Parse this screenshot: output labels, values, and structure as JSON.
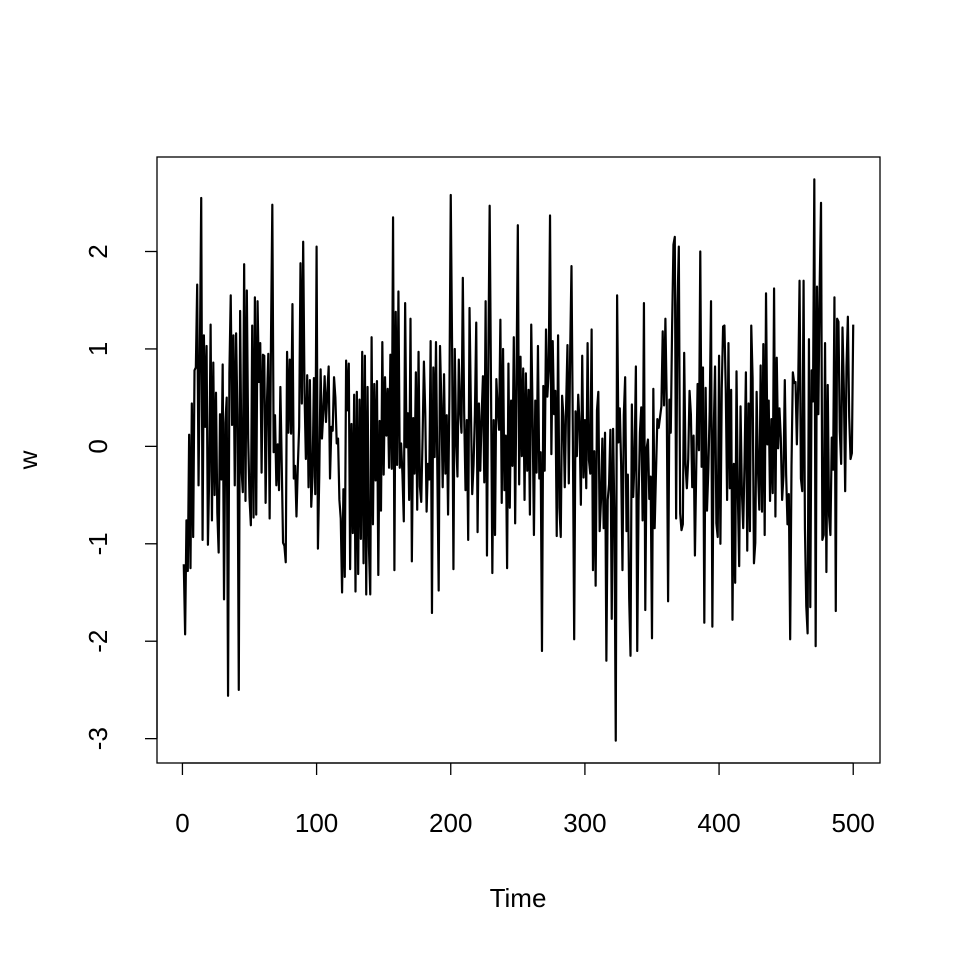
{
  "chart_data": {
    "type": "line",
    "xlabel": "Time",
    "ylabel": "w",
    "color": "#000000",
    "xlim": [
      -18.96,
      519.96
    ],
    "ylim": [
      -3.25,
      2.97
    ],
    "xticks": [
      0,
      100,
      200,
      300,
      400,
      500
    ],
    "yticks": [
      -3,
      -2,
      -1,
      0,
      1,
      2
    ],
    "x": [
      1,
      2,
      3,
      4,
      5,
      6,
      7,
      8,
      9,
      10,
      11,
      12,
      13,
      14,
      15,
      16,
      17,
      18,
      19,
      20,
      21,
      22,
      23,
      24,
      25,
      26,
      27,
      28,
      29,
      30,
      31,
      32,
      33,
      34,
      35,
      36,
      37,
      38,
      39,
      40,
      41,
      42,
      43,
      44,
      45,
      46,
      47,
      48,
      49,
      50,
      51,
      52,
      53,
      54,
      55,
      56,
      57,
      58,
      59,
      60,
      61,
      62,
      63,
      64,
      65,
      66,
      67,
      68,
      69,
      70,
      71,
      72,
      73,
      74,
      75,
      76,
      77,
      78,
      79,
      80,
      81,
      82,
      83,
      84,
      85,
      86,
      87,
      88,
      89,
      90,
      91,
      92,
      93,
      94,
      95,
      96,
      97,
      98,
      99,
      100,
      101,
      102,
      103,
      104,
      105,
      106,
      107,
      108,
      109,
      110,
      111,
      112,
      113,
      114,
      115,
      116,
      117,
      118,
      119,
      120,
      121,
      122,
      123,
      124,
      125,
      126,
      127,
      128,
      129,
      130,
      131,
      132,
      133,
      134,
      135,
      136,
      137,
      138,
      139,
      140,
      141,
      142,
      143,
      144,
      145,
      146,
      147,
      148,
      149,
      150,
      151,
      152,
      153,
      154,
      155,
      156,
      157,
      158,
      159,
      160,
      161,
      162,
      163,
      164,
      165,
      166,
      167,
      168,
      169,
      170,
      171,
      172,
      173,
      174,
      175,
      176,
      177,
      178,
      179,
      180,
      181,
      182,
      183,
      184,
      185,
      186,
      187,
      188,
      189,
      190,
      191,
      192,
      193,
      194,
      195,
      196,
      197,
      198,
      199,
      200,
      201,
      202,
      203,
      204,
      205,
      206,
      207,
      208,
      209,
      210,
      211,
      212,
      213,
      214,
      215,
      216,
      217,
      218,
      219,
      220,
      221,
      222,
      223,
      224,
      225,
      226,
      227,
      228,
      229,
      230,
      231,
      232,
      233,
      234,
      235,
      236,
      237,
      238,
      239,
      240,
      241,
      242,
      243,
      244,
      245,
      246,
      247,
      248,
      249,
      250,
      251,
      252,
      253,
      254,
      255,
      256,
      257,
      258,
      259,
      260,
      261,
      262,
      263,
      264,
      265,
      266,
      267,
      268,
      269,
      270,
      271,
      272,
      273,
      274,
      275,
      276,
      277,
      278,
      279,
      280,
      281,
      282,
      283,
      284,
      285,
      286,
      287,
      288,
      289,
      290,
      291,
      292,
      293,
      294,
      295,
      296,
      297,
      298,
      299,
      300,
      301,
      302,
      303,
      304,
      305,
      306,
      307,
      308,
      309,
      310,
      311,
      312,
      313,
      314,
      315,
      316,
      317,
      318,
      319,
      320,
      321,
      322,
      323,
      324,
      325,
      326,
      327,
      328,
      329,
      330,
      331,
      332,
      333,
      334,
      335,
      336,
      337,
      338,
      339,
      340,
      341,
      342,
      343,
      344,
      345,
      346,
      347,
      348,
      349,
      350,
      351,
      352,
      353,
      354,
      355,
      356,
      357,
      358,
      359,
      360,
      361,
      362,
      363,
      364,
      365,
      366,
      367,
      368,
      369,
      370,
      371,
      372,
      373,
      374,
      375,
      376,
      377,
      378,
      379,
      380,
      381,
      382,
      383,
      384,
      385,
      386,
      387,
      388,
      389,
      390,
      391,
      392,
      393,
      394,
      395,
      396,
      397,
      398,
      399,
      400,
      401,
      402,
      403,
      404,
      405,
      406,
      407,
      408,
      409,
      410,
      411,
      412,
      413,
      414,
      415,
      416,
      417,
      418,
      419,
      420,
      421,
      422,
      423,
      424,
      425,
      426,
      427,
      428,
      429,
      430,
      431,
      432,
      433,
      434,
      435,
      436,
      437,
      438,
      439,
      440,
      441,
      442,
      443,
      444,
      445,
      446,
      447,
      448,
      449,
      450,
      451,
      452,
      453,
      454,
      455,
      456,
      457,
      458,
      459,
      460,
      461,
      462,
      463,
      464,
      465,
      466,
      467,
      468,
      469,
      470,
      471,
      472,
      473,
      474,
      475,
      476,
      477,
      478,
      479,
      480,
      481,
      482,
      483,
      484,
      485,
      486,
      487,
      488,
      489,
      490,
      491,
      492,
      493,
      494,
      495,
      496,
      497,
      498,
      499,
      500
    ],
    "values": [
      -1.21,
      -1.93,
      -0.76,
      -1.28,
      0.12,
      -1.25,
      0.44,
      -0.93,
      0.78,
      0.81,
      1.66,
      -0.4,
      0.95,
      2.55,
      -0.96,
      1.14,
      0.2,
      1.03,
      -1.01,
      -0.25,
      1.25,
      -0.76,
      0.86,
      -0.5,
      0.55,
      -0.68,
      -1.09,
      0.33,
      -0.34,
      0.84,
      -1.57,
      0.24,
      0.5,
      -2.56,
      0.75,
      1.55,
      0.22,
      1.14,
      -0.4,
      1.16,
      0.3,
      -2.5,
      1.39,
      -0.22,
      -0.47,
      1.87,
      -0.56,
      1.6,
      0.08,
      -0.53,
      -0.81,
      1.24,
      -0.73,
      1.53,
      -0.7,
      1.49,
      0.66,
      1.06,
      -0.27,
      0.94,
      0.93,
      -0.58,
      0.45,
      0.95,
      -0.74,
      1.09,
      2.48,
      -0.06,
      0.32,
      -0.4,
      0.02,
      -0.45,
      0.61,
      -0.17,
      -0.99,
      -1.02,
      -1.19,
      0.97,
      0.14,
      0.89,
      0.13,
      1.46,
      -0.33,
      -0.2,
      -0.72,
      -0.21,
      0.2,
      1.88,
      0.44,
      2.1,
      0.55,
      -0.13,
      0.73,
      -0.42,
      0.68,
      -0.62,
      -0.31,
      0.7,
      -0.49,
      2.05,
      -1.05,
      -0.29,
      0.79,
      0.08,
      0.35,
      0.72,
      0.25,
      0.55,
      0.82,
      -0.33,
      0.2,
      0.16,
      0.71,
      0.5,
      0.03,
      0.08,
      -0.55,
      -0.74,
      -1.5,
      -0.44,
      -1.34,
      0.88,
      0.37,
      0.85,
      -1.26,
      0.23,
      -0.89,
      0.53,
      -1.49,
      0.56,
      -1.31,
      0.48,
      -0.95,
      0.97,
      -1.2,
      0.93,
      -1.52,
      0.61,
      -1.03,
      -1.52,
      1.12,
      -0.8,
      0.64,
      -0.35,
      0.67,
      -1.32,
      0.26,
      -0.66,
      1.07,
      -0.29,
      0.71,
      0.11,
      0.59,
      -0.22,
      0.94,
      -0.23,
      2.35,
      -1.27,
      1.38,
      -0.19,
      1.59,
      -0.22,
      0.03,
      -0.29,
      -0.77,
      1.47,
      -0.01,
      0.34,
      -0.55,
      1.31,
      -1.18,
      0.29,
      -0.28,
      0.76,
      -0.65,
      0.97,
      -0.41,
      -0.57,
      0.09,
      0.87,
      0.34,
      -0.67,
      -0.18,
      -0.34,
      1.08,
      -1.71,
      0.81,
      -0.11,
      1.07,
      -0.24,
      -1.48,
      1.03,
      0.44,
      -0.42,
      0.74,
      -0.28,
      0.32,
      -0.7,
      0.53,
      2.58,
      1.02,
      -1.26,
      1.0,
      0.08,
      -0.31,
      0.89,
      0.37,
      0.14,
      1.73,
      0.34,
      -0.45,
      0.27,
      -0.96,
      1.42,
      0.41,
      -0.49,
      -0.19,
      0.33,
      1.27,
      -0.88,
      0.44,
      -0.25,
      0.31,
      0.72,
      -0.37,
      1.49,
      -1.12,
      0.86,
      2.47,
      0.63,
      -1.3,
      0.27,
      -0.91,
      0.69,
      0.38,
      0.17,
      1.3,
      -0.58,
      1.0,
      -0.45,
      0.11,
      -1.25,
      0.85,
      -0.63,
      0.47,
      -0.2,
      1.12,
      -0.79,
      0.68,
      2.27,
      -0.39,
      0.92,
      -0.1,
      0.8,
      -0.55,
      0.75,
      -0.25,
      0.58,
      -0.7,
      1.25,
      0.33,
      -0.91,
      0.47,
      -0.27,
      1.03,
      -0.33,
      -0.06,
      -2.1,
      0.62,
      -0.25,
      1.2,
      0.51,
      0.77,
      2.37,
      -0.08,
      1.08,
      0.33,
      0.57,
      -0.92,
      1.14,
      -0.63,
      -0.93,
      0.52,
      0.31,
      -0.42,
      0.42,
      1.04,
      -0.38,
      0.96,
      1.85,
      0.14,
      -1.98,
      0.36,
      -0.1,
      0.53,
      0.23,
      -0.6,
      0.93,
      -0.32,
      0.27,
      -0.43,
      1.06,
      -0.14,
      -0.28,
      1.2,
      -1.27,
      -0.05,
      -1.43,
      0.37,
      0.56,
      -0.87,
      -0.55,
      0.08,
      -0.84,
      0.14,
      -2.2,
      -0.55,
      -0.39,
      0.17,
      -1.77,
      0.18,
      -0.74,
      -3.02,
      1.55,
      0.04,
      0.39,
      -0.18,
      -1.27,
      0.32,
      0.71,
      -0.87,
      -0.29,
      -1.56,
      -2.15,
      0.43,
      -0.52,
      -0.14,
      0.82,
      -2.1,
      -0.56,
      0.14,
      0.4,
      -0.76,
      1.47,
      -1.68,
      -0.02,
      0.07,
      -0.54,
      -0.31,
      -1.97,
      0.59,
      -0.84,
      -0.26,
      0.28,
      0.19,
      0.3,
      0.41,
      1.18,
      0.42,
      1.31,
      0.45,
      -1.59,
      0.48,
      0.14,
      1.23,
      2.07,
      2.15,
      -0.74,
      1.45,
      2.05,
      -0.69,
      -0.86,
      -0.8,
      0.96,
      -0.19,
      -0.43,
      -0.13,
      0.57,
      0.33,
      -0.42,
      0.11,
      -1.12,
      -0.21,
      0.64,
      -0.04,
      2.0,
      -0.21,
      0.81,
      -1.81,
      0.6,
      -0.66,
      -0.24,
      0.36,
      1.49,
      -1.85,
      0.13,
      0.82,
      -0.79,
      -0.93,
      0.93,
      -1.0,
      0.59,
      1.23,
      1.24,
      0.58,
      -0.55,
      1.06,
      -0.43,
      0.58,
      -1.78,
      -0.18,
      -1.4,
      0.77,
      -0.5,
      -1.23,
      0.41,
      -0.46,
      -0.84,
      -0.16,
      0.76,
      -1.07,
      0.44,
      -0.87,
      1.24,
      0.7,
      -1.2,
      -0.99,
      0.56,
      -0.24,
      -0.65,
      0.83,
      -0.67,
      1.05,
      -0.91,
      1.57,
      0.02,
      0.47,
      -0.56,
      0.28,
      -0.48,
      1.62,
      -0.72,
      0.91,
      -0.02,
      0.39,
      0.09,
      -0.55,
      -0.3,
      0.68,
      -0.29,
      -0.8,
      -0.49,
      -1.98,
      -0.2,
      0.76,
      0.65,
      0.66,
      0.02,
      0.64,
      1.7,
      -0.33,
      -0.46,
      1.7,
      -0.84,
      -1.64,
      -1.92,
      1.1,
      -1.65,
      0.78,
      0.46,
      2.74,
      -2.05,
      1.64,
      0.33,
      1.65,
      2.5,
      -0.96,
      -0.91,
      1.06,
      -1.29,
      0.63,
      -0.71,
      -0.91,
      0.09,
      -0.24,
      1.53,
      -1.69,
      1.31,
      1.28,
      0.15,
      -0.18,
      1.22,
      0.6,
      -0.46,
      0.82,
      1.33,
      0.3,
      -0.13,
      -0.07,
      1.25
    ]
  }
}
